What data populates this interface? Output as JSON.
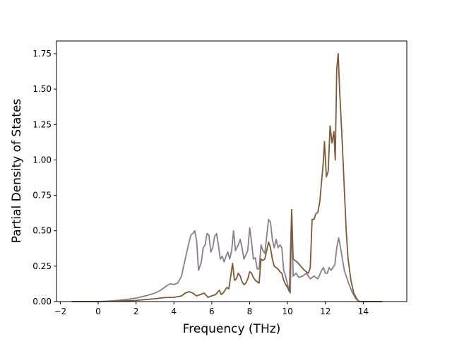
{
  "chart_data": {
    "type": "line",
    "title": "",
    "xlabel": "Frequency (THz)",
    "ylabel": "Partial Density of States",
    "xlim": [
      -2.2,
      16.3
    ],
    "ylim": [
      0,
      1.84
    ],
    "xticks": [
      -2,
      0,
      2,
      4,
      6,
      8,
      10,
      12,
      14
    ],
    "yticks": [
      0.0,
      0.25,
      0.5,
      0.75,
      1.0,
      1.25,
      1.5,
      1.75
    ],
    "xtick_labels": [
      "−2",
      "0",
      "2",
      "4",
      "6",
      "8",
      "10",
      "12",
      "14"
    ],
    "ytick_labels": [
      "0.00",
      "0.25",
      "0.50",
      "0.75",
      "1.00",
      "1.25",
      "1.50",
      "1.75"
    ],
    "grid": false,
    "legend": "none",
    "series": [
      {
        "color": "#8c7b8c",
        "points": [
          [
            -1.4,
            0.0
          ],
          [
            0.0,
            0.0
          ],
          [
            0.5,
            0.003
          ],
          [
            1.0,
            0.008
          ],
          [
            1.5,
            0.015
          ],
          [
            2.0,
            0.025
          ],
          [
            2.5,
            0.04
          ],
          [
            3.0,
            0.06
          ],
          [
            3.3,
            0.08
          ],
          [
            3.6,
            0.11
          ],
          [
            3.8,
            0.125
          ],
          [
            4.0,
            0.12
          ],
          [
            4.2,
            0.13
          ],
          [
            4.4,
            0.18
          ],
          [
            4.6,
            0.3
          ],
          [
            4.8,
            0.42
          ],
          [
            4.9,
            0.47
          ],
          [
            5.0,
            0.48
          ],
          [
            5.1,
            0.5
          ],
          [
            5.2,
            0.43
          ],
          [
            5.3,
            0.22
          ],
          [
            5.45,
            0.28
          ],
          [
            5.55,
            0.38
          ],
          [
            5.65,
            0.4
          ],
          [
            5.75,
            0.48
          ],
          [
            5.85,
            0.47
          ],
          [
            5.95,
            0.35
          ],
          [
            6.05,
            0.38
          ],
          [
            6.15,
            0.46
          ],
          [
            6.25,
            0.48
          ],
          [
            6.35,
            0.4
          ],
          [
            6.45,
            0.3
          ],
          [
            6.55,
            0.32
          ],
          [
            6.65,
            0.28
          ],
          [
            6.75,
            0.32
          ],
          [
            6.85,
            0.35
          ],
          [
            6.95,
            0.3
          ],
          [
            7.05,
            0.36
          ],
          [
            7.15,
            0.5
          ],
          [
            7.25,
            0.36
          ],
          [
            7.4,
            0.4
          ],
          [
            7.5,
            0.44
          ],
          [
            7.6,
            0.38
          ],
          [
            7.7,
            0.3
          ],
          [
            7.8,
            0.33
          ],
          [
            7.9,
            0.36
          ],
          [
            8.0,
            0.52
          ],
          [
            8.1,
            0.42
          ],
          [
            8.2,
            0.3
          ],
          [
            8.3,
            0.31
          ],
          [
            8.4,
            0.23
          ],
          [
            8.5,
            0.23
          ],
          [
            8.6,
            0.4
          ],
          [
            8.7,
            0.36
          ],
          [
            8.8,
            0.34
          ],
          [
            8.9,
            0.46
          ],
          [
            9.0,
            0.58
          ],
          [
            9.1,
            0.56
          ],
          [
            9.2,
            0.44
          ],
          [
            9.3,
            0.38
          ],
          [
            9.4,
            0.44
          ],
          [
            9.5,
            0.38
          ],
          [
            9.6,
            0.4
          ],
          [
            9.7,
            0.38
          ],
          [
            9.8,
            0.22
          ],
          [
            9.9,
            0.18
          ],
          [
            10.0,
            0.12
          ],
          [
            10.1,
            0.08
          ],
          [
            10.15,
            0.06
          ],
          [
            10.22,
            0.62
          ],
          [
            10.3,
            0.18
          ],
          [
            10.45,
            0.2
          ],
          [
            10.6,
            0.17
          ],
          [
            10.8,
            0.18
          ],
          [
            11.0,
            0.2
          ],
          [
            11.2,
            0.16
          ],
          [
            11.4,
            0.18
          ],
          [
            11.6,
            0.16
          ],
          [
            11.8,
            0.22
          ],
          [
            11.9,
            0.24
          ],
          [
            12.0,
            0.2
          ],
          [
            12.1,
            0.2
          ],
          [
            12.2,
            0.24
          ],
          [
            12.3,
            0.22
          ],
          [
            12.5,
            0.26
          ],
          [
            12.6,
            0.38
          ],
          [
            12.7,
            0.45
          ],
          [
            12.8,
            0.38
          ],
          [
            13.0,
            0.22
          ],
          [
            13.2,
            0.14
          ],
          [
            13.4,
            0.07
          ],
          [
            13.6,
            0.02
          ],
          [
            13.8,
            0.0
          ],
          [
            15.0,
            0.0
          ]
        ]
      },
      {
        "color": "#7b5a3a",
        "points": [
          [
            -1.4,
            0.0
          ],
          [
            0.0,
            0.0
          ],
          [
            1.0,
            0.003
          ],
          [
            2.0,
            0.008
          ],
          [
            3.0,
            0.02
          ],
          [
            3.5,
            0.028
          ],
          [
            4.0,
            0.03
          ],
          [
            4.4,
            0.04
          ],
          [
            4.6,
            0.06
          ],
          [
            4.8,
            0.07
          ],
          [
            5.0,
            0.06
          ],
          [
            5.2,
            0.04
          ],
          [
            5.4,
            0.05
          ],
          [
            5.6,
            0.06
          ],
          [
            5.8,
            0.03
          ],
          [
            6.0,
            0.04
          ],
          [
            6.2,
            0.05
          ],
          [
            6.4,
            0.08
          ],
          [
            6.5,
            0.05
          ],
          [
            6.6,
            0.06
          ],
          [
            6.8,
            0.1
          ],
          [
            6.9,
            0.09
          ],
          [
            7.0,
            0.18
          ],
          [
            7.1,
            0.27
          ],
          [
            7.2,
            0.15
          ],
          [
            7.3,
            0.16
          ],
          [
            7.4,
            0.2
          ],
          [
            7.5,
            0.18
          ],
          [
            7.6,
            0.14
          ],
          [
            7.7,
            0.12
          ],
          [
            7.8,
            0.13
          ],
          [
            7.9,
            0.16
          ],
          [
            8.0,
            0.21
          ],
          [
            8.1,
            0.2
          ],
          [
            8.2,
            0.17
          ],
          [
            8.3,
            0.15
          ],
          [
            8.4,
            0.14
          ],
          [
            8.5,
            0.13
          ],
          [
            8.6,
            0.3
          ],
          [
            8.7,
            0.29
          ],
          [
            8.8,
            0.3
          ],
          [
            8.9,
            0.36
          ],
          [
            9.0,
            0.42
          ],
          [
            9.1,
            0.38
          ],
          [
            9.2,
            0.3
          ],
          [
            9.3,
            0.25
          ],
          [
            9.4,
            0.24
          ],
          [
            9.5,
            0.23
          ],
          [
            9.6,
            0.21
          ],
          [
            9.7,
            0.2
          ],
          [
            9.8,
            0.15
          ],
          [
            9.9,
            0.12
          ],
          [
            10.0,
            0.1
          ],
          [
            10.1,
            0.07
          ],
          [
            10.22,
            0.65
          ],
          [
            10.3,
            0.3
          ],
          [
            10.5,
            0.28
          ],
          [
            10.7,
            0.25
          ],
          [
            10.9,
            0.22
          ],
          [
            11.1,
            0.2
          ],
          [
            11.2,
            0.24
          ],
          [
            11.3,
            0.58
          ],
          [
            11.4,
            0.58
          ],
          [
            11.5,
            0.62
          ],
          [
            11.6,
            0.63
          ],
          [
            11.7,
            0.7
          ],
          [
            11.8,
            0.85
          ],
          [
            11.9,
            1.0
          ],
          [
            11.95,
            1.13
          ],
          [
            12.05,
            0.88
          ],
          [
            12.15,
            0.92
          ],
          [
            12.25,
            1.24
          ],
          [
            12.35,
            1.12
          ],
          [
            12.45,
            1.2
          ],
          [
            12.52,
            1.0
          ],
          [
            12.6,
            1.64
          ],
          [
            12.68,
            1.75
          ],
          [
            12.75,
            1.5
          ],
          [
            12.9,
            1.1
          ],
          [
            13.0,
            0.8
          ],
          [
            13.1,
            0.5
          ],
          [
            13.2,
            0.3
          ],
          [
            13.35,
            0.15
          ],
          [
            13.5,
            0.06
          ],
          [
            13.7,
            0.01
          ],
          [
            13.8,
            0.0
          ],
          [
            15.0,
            0.0
          ]
        ]
      }
    ]
  }
}
